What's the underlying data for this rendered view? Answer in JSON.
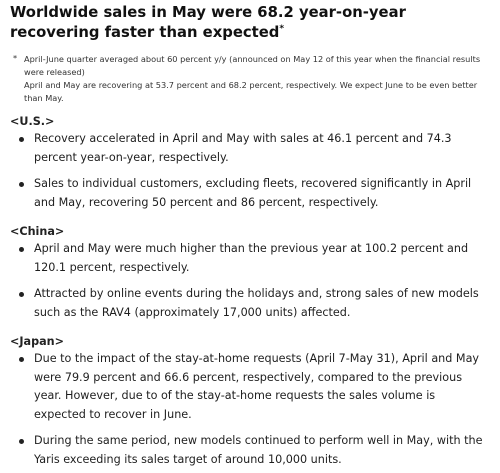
{
  "title": "Worldwide sales in May were 68.2 year-on-year recovering faster than expected",
  "title_marker": "*",
  "note": {
    "marker": "*",
    "lines": [
      "April-June quarter averaged about 60 percent y/y (announced on May 12 of this year when the financial results were released)",
      "April and May are recovering at 53.7 percent and 68.2 percent, respectively. We expect June to be even better than May."
    ]
  },
  "sections": [
    {
      "heading": "<U.S.>",
      "bullets": [
        "Recovery accelerated in April and May with sales at 46.1 percent and 74.3 percent year-on-year, respectively.",
        "Sales to individual customers, excluding fleets, recovered significantly in April and May, recovering 50 percent and 86 percent, respectively."
      ]
    },
    {
      "heading": "<China>",
      "bullets": [
        "April and May were much higher than the previous year at 100.2 percent and 120.1 percent, respectively.",
        "Attracted by online events during the holidays and, strong sales of new models such as the RAV4 (approximately 17,000 units) affected."
      ]
    },
    {
      "heading": "<Japan>",
      "bullets": [
        "Due to the impact of the stay-at-home requests (April 7-May 31), April and May were 79.9 percent and 66.6 percent, respectively, compared to the previous year. However, due to of the stay-at-home requests the sales volume is expected to recover in June.",
        "During the same period, new models continued to perform well in May, with the Yaris exceeding its sales target of around 10,000 units."
      ]
    }
  ]
}
